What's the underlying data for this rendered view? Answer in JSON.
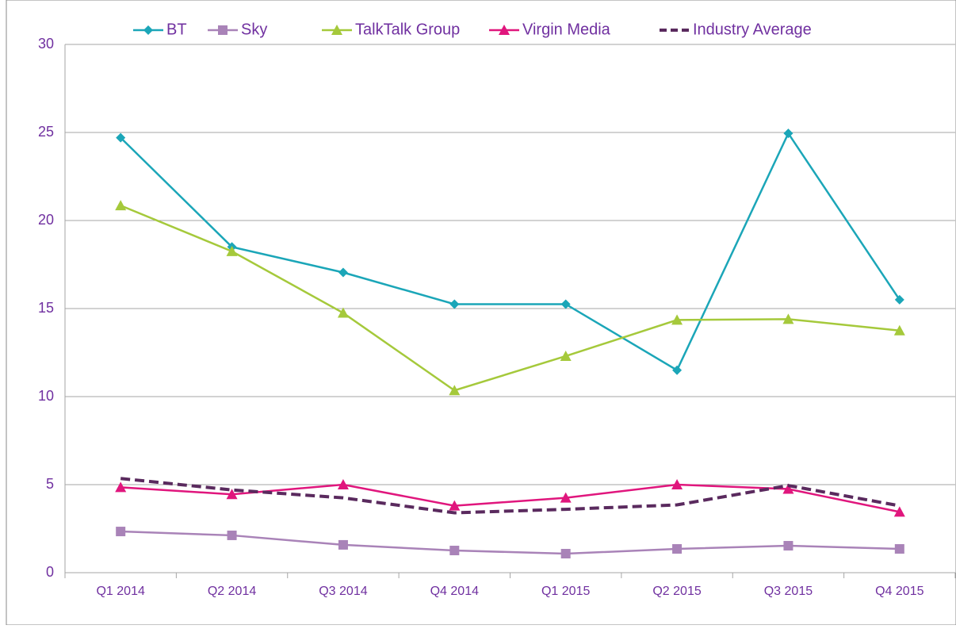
{
  "chart_data": {
    "type": "line",
    "categories": [
      "Q1 2014",
      "Q2 2014",
      "Q3 2014",
      "Q4 2014",
      "Q1 2015",
      "Q2 2015",
      "Q3 2015",
      "Q4 2015"
    ],
    "series": [
      {
        "name": "BT",
        "color": "#1ba6b8",
        "marker": "diamond",
        "values": [
          24.7,
          18.5,
          17.05,
          15.25,
          15.25,
          11.5,
          24.95,
          15.5
        ]
      },
      {
        "name": "Sky",
        "color": "#a983b8",
        "marker": "square",
        "values": [
          2.34,
          2.12,
          1.58,
          1.26,
          1.08,
          1.35,
          1.53,
          1.35
        ]
      },
      {
        "name": "TalkTalk Group",
        "color": "#a5c93b",
        "marker": "triangle",
        "values": [
          20.85,
          18.25,
          14.75,
          10.35,
          12.3,
          14.35,
          14.4,
          13.75
        ]
      },
      {
        "name": "Virgin Media",
        "color": "#e0167d",
        "marker": "triangle",
        "values": [
          4.85,
          4.45,
          5.0,
          3.8,
          4.25,
          5.0,
          4.75,
          3.45
        ]
      },
      {
        "name": "Industry Average",
        "color": "#5a2a5e",
        "marker": "none",
        "dashed": true,
        "values": [
          5.35,
          4.7,
          4.25,
          3.4,
          3.6,
          3.85,
          4.95,
          3.8
        ]
      }
    ],
    "ylim": [
      0,
      30
    ],
    "yticks": [
      0,
      5,
      10,
      15,
      20,
      25,
      30
    ],
    "grid": true,
    "legend": "top"
  }
}
